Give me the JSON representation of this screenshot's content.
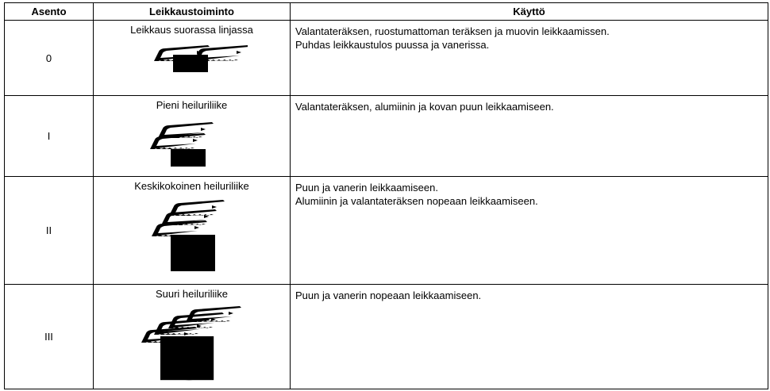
{
  "table": {
    "header": [
      "Asento",
      "Leikkaustoiminto",
      "Käyttö"
    ],
    "rows": [
      {
        "position": "0",
        "action": "Leikkaus suorassa linjassa",
        "usage": [
          "Valantateräksen, ruostumattoman teräksen ja muovin leikkaamissen.",
          "Puhdas leikkaustulos puussa ja vanerissa."
        ]
      },
      {
        "position": "I",
        "action": "Pieni heiluriliike",
        "usage": [
          "Valantateräksen, alumiinin ja kovan puun leikkaamiseen."
        ]
      },
      {
        "position": "II",
        "action": "Keskikokoinen heiluriliike",
        "usage": [
          "Puun ja vanerin leikkaamiseen.",
          "Alumiinin ja valantateräksen nopeaan leikkaamiseen."
        ]
      },
      {
        "position": "III",
        "action": "Suuri heiluriliike",
        "usage": [
          "Puun ja vanerin nopeaan leikkaamiseen."
        ]
      }
    ]
  }
}
